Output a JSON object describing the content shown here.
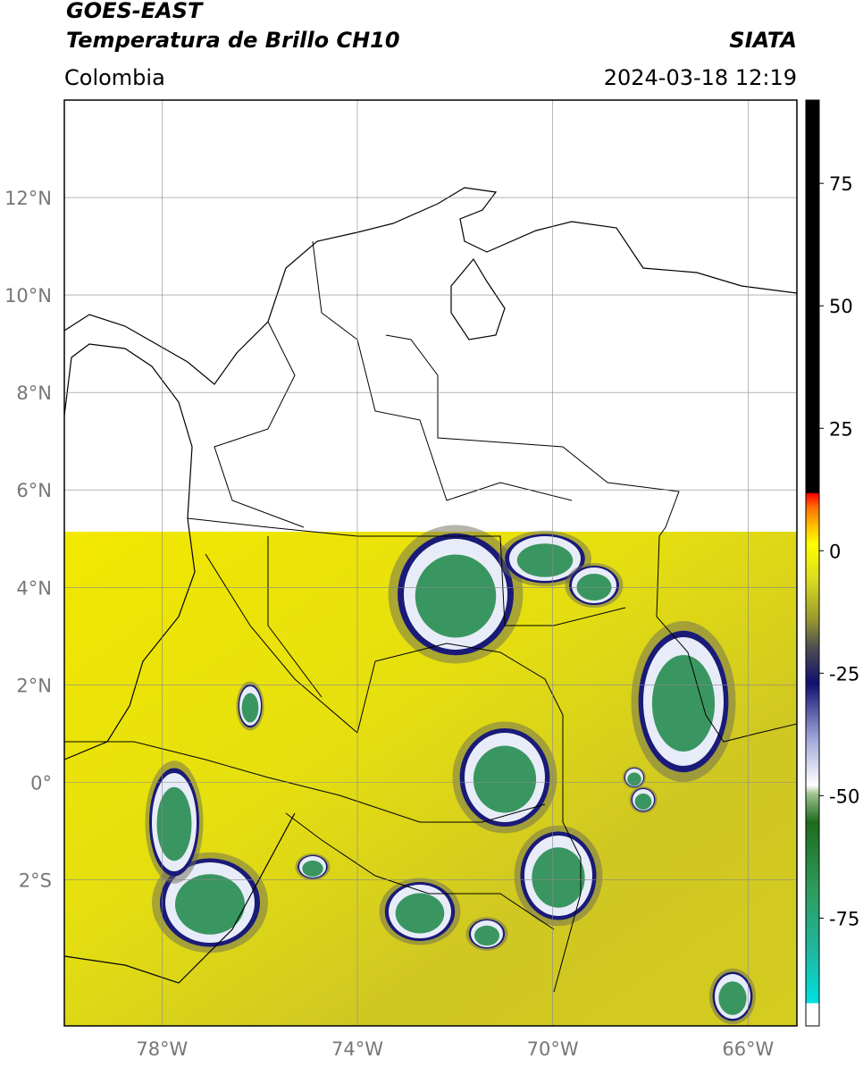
{
  "header": {
    "title": "GOES-EAST",
    "subtitle": "Temperatura de Brillo CH10",
    "source": "SIATA",
    "region": "Colombia",
    "timestamp": "2024-03-18 12:19"
  },
  "map": {
    "lonlim": [
      -80,
      -65
    ],
    "latlim": [
      -5,
      14
    ],
    "lon_ticks": [
      {
        "value": -78,
        "label": "78°W"
      },
      {
        "value": -74,
        "label": "74°W"
      },
      {
        "value": -70,
        "label": "70°W"
      },
      {
        "value": -66,
        "label": "66°W"
      }
    ],
    "lat_ticks": [
      {
        "value": 12,
        "label": "12°N"
      },
      {
        "value": 10,
        "label": "10°N"
      },
      {
        "value": 8,
        "label": "8°N"
      },
      {
        "value": 6,
        "label": "6°N"
      },
      {
        "value": 4,
        "label": "4°N"
      },
      {
        "value": 2,
        "label": "2°N"
      },
      {
        "value": 0,
        "label": "0°"
      },
      {
        "value": -2,
        "label": "2°S"
      }
    ]
  },
  "colorbar": {
    "lim": [
      -97,
      92
    ],
    "ticks": [
      75,
      50,
      25,
      0,
      -25,
      -50,
      -75
    ]
  }
}
